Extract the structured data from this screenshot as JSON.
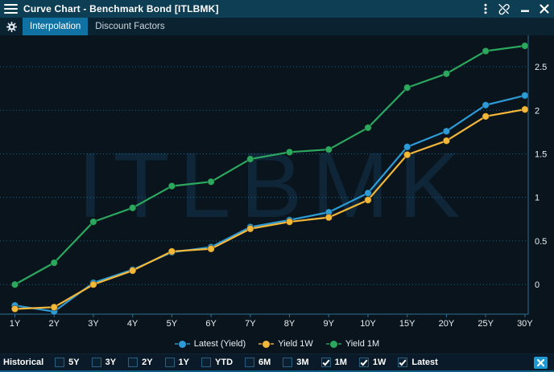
{
  "window": {
    "title": "Curve Chart - Benchmark Bond [ITLBMK]",
    "titlebar_icons": [
      "menu-icon",
      "more-options-icon",
      "link-off-icon",
      "minimize-icon",
      "close-icon"
    ]
  },
  "toolbar": {
    "settings_icon": "gear-icon",
    "tabs": [
      {
        "label": "Interpolation",
        "active": true
      },
      {
        "label": "Discount Factors",
        "active": false
      }
    ]
  },
  "chart_data": {
    "type": "line",
    "title": "",
    "watermark": "ITLBMK",
    "x_categories": [
      "1Y",
      "2Y",
      "3Y",
      "4Y",
      "5Y",
      "6Y",
      "7Y",
      "8Y",
      "9Y",
      "10Y",
      "15Y",
      "20Y",
      "25Y",
      "30Y"
    ],
    "series": [
      {
        "name": "Latest (Yield)",
        "color": "#2d9bd6",
        "values": [
          -0.24,
          -0.31,
          0.02,
          0.17,
          0.37,
          0.43,
          0.66,
          0.74,
          0.83,
          1.05,
          1.58,
          1.76,
          2.06,
          2.17
        ]
      },
      {
        "name": "Yield 1W",
        "color": "#f3b73a",
        "values": [
          -0.28,
          -0.26,
          0.0,
          0.16,
          0.38,
          0.41,
          0.64,
          0.72,
          0.77,
          0.97,
          1.49,
          1.65,
          1.93,
          2.01
        ]
      },
      {
        "name": "Yield 1M",
        "color": "#2ca75e",
        "values": [
          0.0,
          0.25,
          0.72,
          0.88,
          1.13,
          1.18,
          1.44,
          1.52,
          1.55,
          1.8,
          2.26,
          2.42,
          2.68,
          2.74
        ]
      }
    ],
    "ylim": [
      -0.34,
      2.86
    ],
    "yticks": [
      0,
      0.5,
      1,
      1.5,
      2,
      2.5
    ],
    "ytick_labels": [
      "0",
      "0.5",
      "1",
      "1.5",
      "2",
      "2.5"
    ],
    "y_axis_side": "right",
    "grid": "horizontal-dotted",
    "legend_position": "bottom-center"
  },
  "historical_bar": {
    "label": "Historical",
    "options": [
      {
        "label": "5Y",
        "checked": false
      },
      {
        "label": "3Y",
        "checked": false
      },
      {
        "label": "2Y",
        "checked": false
      },
      {
        "label": "1Y",
        "checked": false
      },
      {
        "label": "YTD",
        "checked": false
      },
      {
        "label": "6M",
        "checked": false
      },
      {
        "label": "3M",
        "checked": false
      },
      {
        "label": "1M",
        "checked": true
      },
      {
        "label": "1W",
        "checked": true
      },
      {
        "label": "Latest",
        "checked": true
      }
    ],
    "close_icon": "close-icon"
  },
  "colors": {
    "titlebar_bg": "#0e3e54",
    "tabbar_bg": "#0b2231",
    "active_tab_bg": "#0f72a3",
    "chart_bg": "#0a141d",
    "bottombar_bg": "#0b1a28",
    "grid_line": "#35718f",
    "axis_line": "#2e6f94",
    "watermark": "#14344e",
    "accent_blue": "#1e9bd6",
    "bottom_strip": "#0f5f86"
  }
}
